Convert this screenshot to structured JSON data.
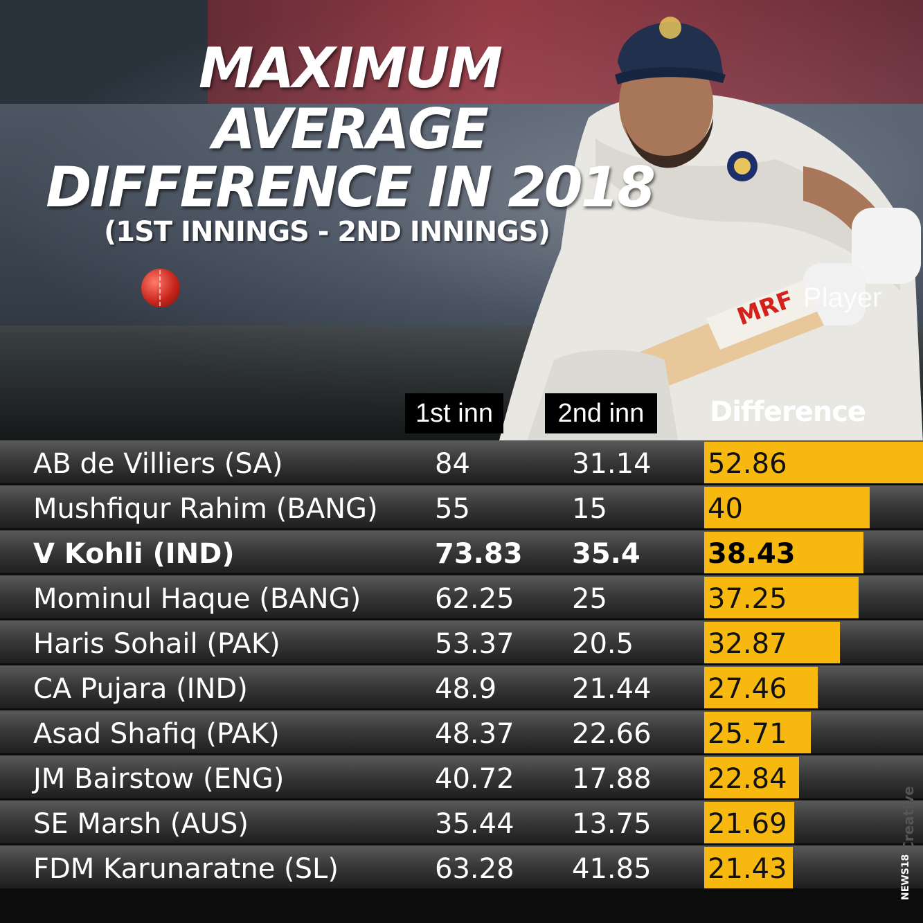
{
  "title_lines": [
    "MAXIMUM",
    "AVERAGE",
    "DIFFERENCE IN 2018"
  ],
  "subtitle": "(1ST INNINGS - 2ND INNINGS)",
  "overlay_label": "Player",
  "headers": {
    "first": "1st inn",
    "second": "2nd inn",
    "diff": "Difference"
  },
  "branding": {
    "creative": "Creative",
    "news": "NEWS18"
  },
  "colors": {
    "bar": "#f7b90f",
    "header_bg": "#000000"
  },
  "chart_data": {
    "type": "table",
    "columns": [
      "",
      "1st inn",
      "2nd inn",
      "Difference"
    ],
    "rows": [
      {
        "player": "AB de Villiers (SA)",
        "first": "84",
        "second": "31.14",
        "diff": "52.86",
        "diff_value": 52.86,
        "bold": false
      },
      {
        "player": "Mushfiqur Rahim (BANG)",
        "first": "55",
        "second": "15",
        "diff": "40",
        "diff_value": 40,
        "bold": false
      },
      {
        "player": "V Kohli (IND)",
        "first": "73.83",
        "second": "35.4",
        "diff": "38.43",
        "diff_value": 38.43,
        "bold": true
      },
      {
        "player": "Mominul Haque (BANG)",
        "first": "62.25",
        "second": "25",
        "diff": "37.25",
        "diff_value": 37.25,
        "bold": false
      },
      {
        "player": "Haris Sohail (PAK)",
        "first": "53.37",
        "second": "20.5",
        "diff": "32.87",
        "diff_value": 32.87,
        "bold": false
      },
      {
        "player": "CA Pujara (IND)",
        "first": "48.9",
        "second": "21.44",
        "diff": "27.46",
        "diff_value": 27.46,
        "bold": false
      },
      {
        "player": "Asad Shafiq (PAK)",
        "first": "48.37",
        "second": "22.66",
        "diff": "25.71",
        "diff_value": 25.71,
        "bold": false
      },
      {
        "player": "JM Bairstow (ENG)",
        "first": "40.72",
        "second": "17.88",
        "diff": "22.84",
        "diff_value": 22.84,
        "bold": false
      },
      {
        "player": "SE Marsh (AUS)",
        "first": "35.44",
        "second": "13.75",
        "diff": "21.69",
        "diff_value": 21.69,
        "bold": false
      },
      {
        "player": "FDM Karunaratne (SL)",
        "first": "63.28",
        "second": "41.85",
        "diff": "21.43",
        "diff_value": 21.43,
        "bold": false
      }
    ]
  }
}
